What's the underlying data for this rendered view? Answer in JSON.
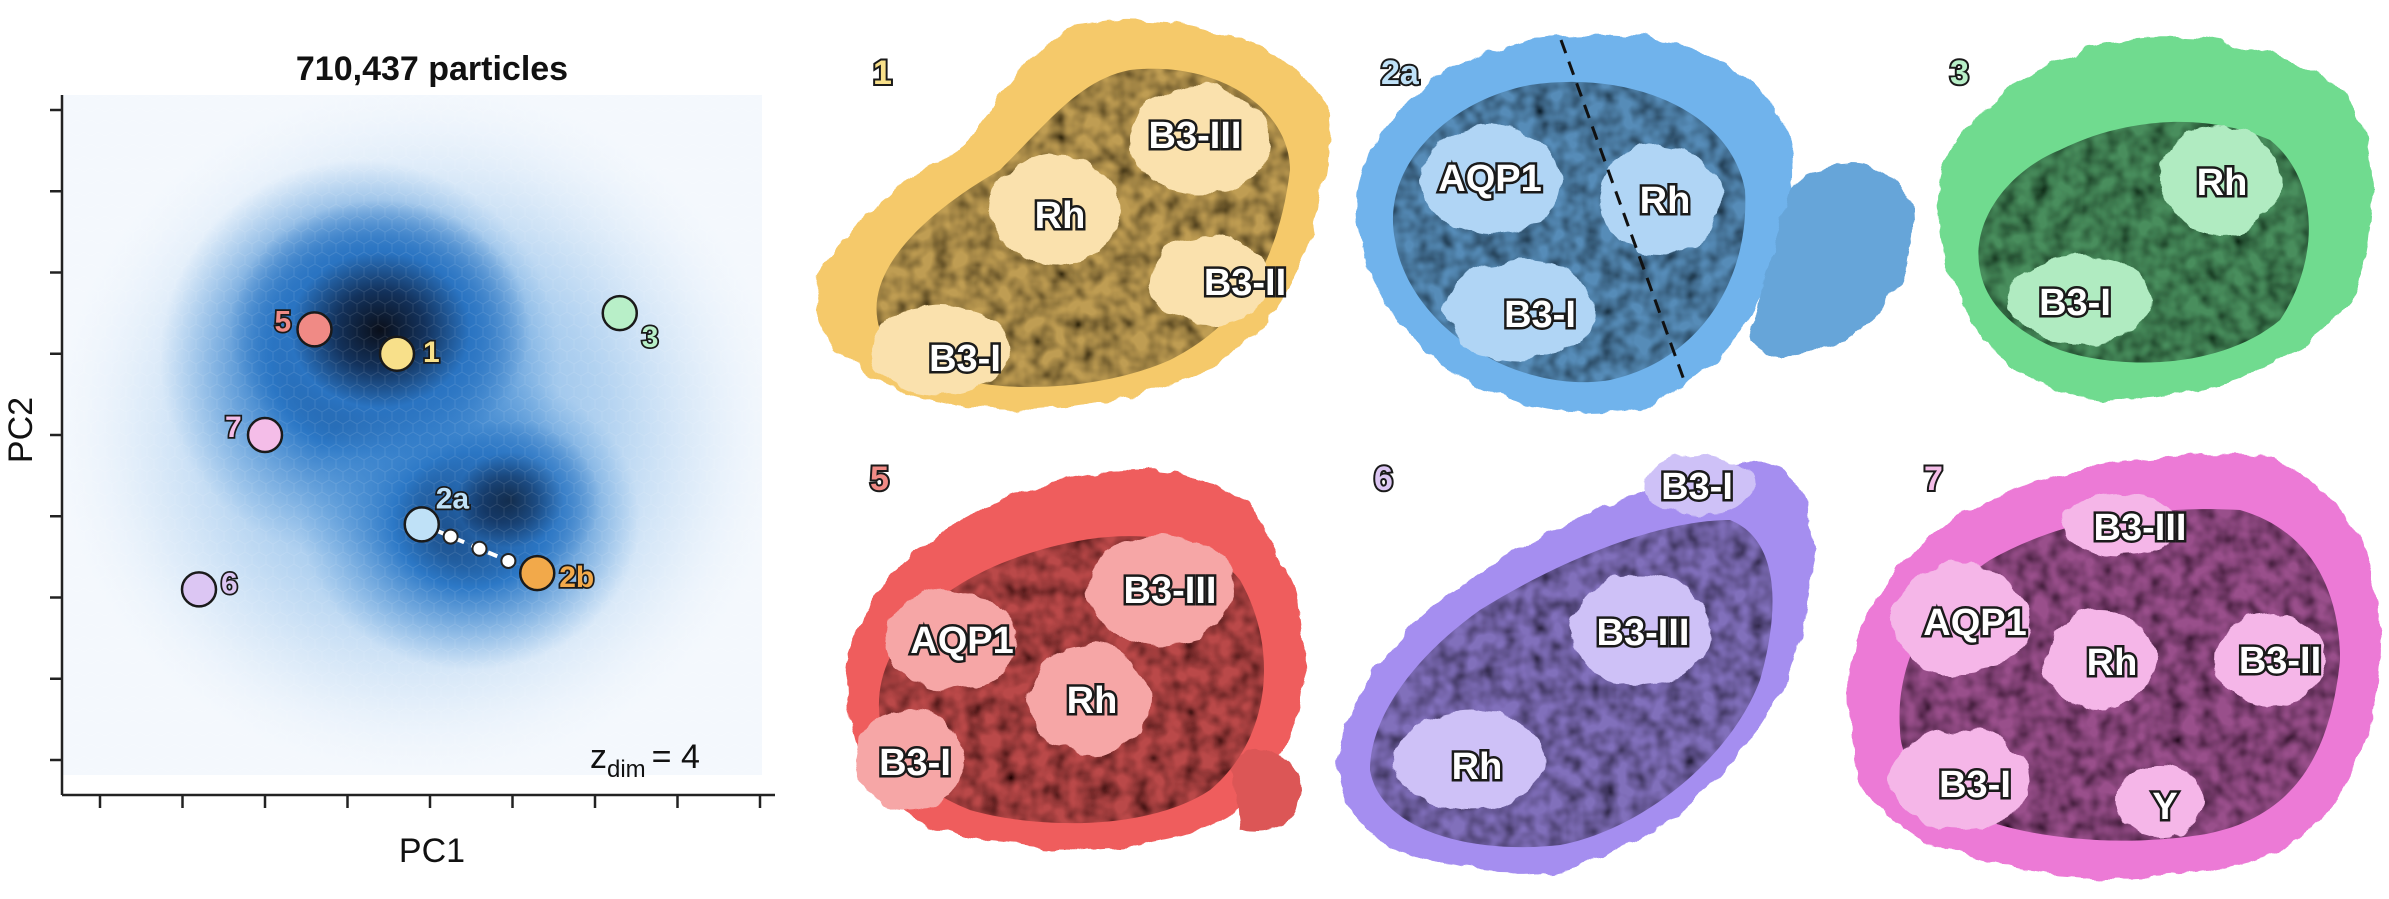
{
  "plot": {
    "title": "710,437 particles",
    "xlabel": "PC1",
    "ylabel": "PC2",
    "zdim_label": "z",
    "zdim_sub": "dim",
    "zdim_value": "= 4"
  },
  "chart_data": {
    "type": "scatter",
    "title": "710,437 particles",
    "xlabel": "PC1",
    "ylabel": "PC2",
    "xlim": [
      -4,
      4
    ],
    "ylim": [
      -4,
      4
    ],
    "grid": false,
    "background": "hexbin density (blue colormap)",
    "points": [
      {
        "label": "1",
        "x": -0.4,
        "y": 1.0,
        "color": "#f8e08a"
      },
      {
        "label": "2a",
        "x": -0.1,
        "y": -1.1,
        "color": "#bfe1f7"
      },
      {
        "label": "2b",
        "x": 1.3,
        "y": -1.7,
        "color": "#f2a94a"
      },
      {
        "label": "3",
        "x": 2.3,
        "y": 1.5,
        "color": "#b8efc8"
      },
      {
        "label": "5",
        "x": -1.4,
        "y": 1.3,
        "color": "#f08a85"
      },
      {
        "label": "6",
        "x": -2.8,
        "y": -1.9,
        "color": "#dcc6f3"
      },
      {
        "label": "7",
        "x": -2.0,
        "y": 0.0,
        "color": "#f4bde8"
      }
    ],
    "trajectory": [
      "2a",
      "2b"
    ]
  },
  "panels": [
    {
      "number": "1",
      "color": "#f5c96a",
      "number_color": "#f8e08a",
      "labels": [
        "B3-III",
        "Rh",
        "B3-II",
        "B3-I"
      ]
    },
    {
      "number": "2a",
      "color": "#6fb3ec",
      "number_color": "#bfe1f7",
      "labels": [
        "AQP1",
        "Rh",
        "B3-I"
      ]
    },
    {
      "number": "3",
      "color": "#6fdb8f",
      "number_color": "#b8efc8",
      "labels": [
        "Rh",
        "B3-I"
      ]
    },
    {
      "number": "5",
      "color": "#ef5d5d",
      "number_color": "#f08a85",
      "labels": [
        "B3-III",
        "AQP1",
        "Rh",
        "B3-I"
      ]
    },
    {
      "number": "6",
      "color": "#a58ef0",
      "number_color": "#dcc6f3",
      "labels": [
        "B3-III",
        "Rh",
        "B3-I"
      ]
    },
    {
      "number": "7",
      "color": "#ec7ad6",
      "number_color": "#f4bde8",
      "labels": [
        "B3-III",
        "AQP1",
        "Rh",
        "B3-II",
        "B3-I",
        "Y"
      ]
    }
  ]
}
